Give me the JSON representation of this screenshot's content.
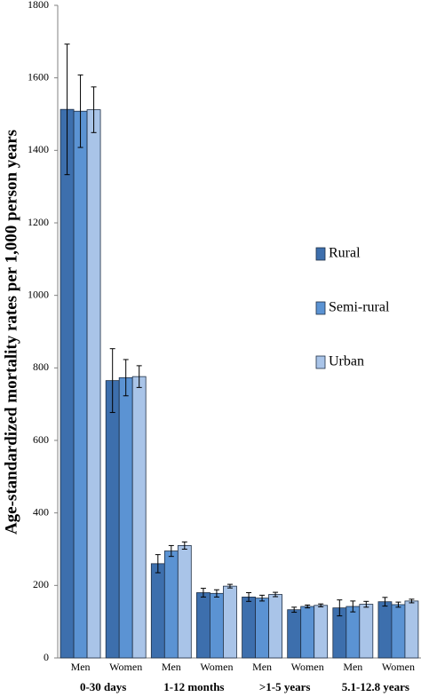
{
  "chart_data": {
    "type": "bar",
    "ylabel": "Age-standardized mortality rates  per 1,000 person years",
    "categories": [
      "Men",
      "Women",
      "Men",
      "Women",
      "Men",
      "Women",
      "Men",
      "Women"
    ],
    "groups": [
      "0-30 days",
      "1-12 months",
      ">1-5 years",
      "5.1-12.8 years"
    ],
    "series": [
      {
        "name": "Rural",
        "color": "#3d6fad",
        "values": [
          1513,
          765,
          260,
          180,
          168,
          133,
          138,
          155
        ],
        "errors": [
          180,
          88,
          25,
          12,
          12,
          7,
          22,
          12
        ]
      },
      {
        "name": "Semi-rural",
        "color": "#5b93d3",
        "values": [
          1508,
          773,
          295,
          178,
          165,
          142,
          142,
          147
        ],
        "errors": [
          100,
          50,
          15,
          10,
          8,
          4,
          15,
          7
        ]
      },
      {
        "name": "Urban",
        "color": "#a9c4e8",
        "values": [
          1512,
          776,
          310,
          198,
          175,
          145,
          148,
          157
        ],
        "errors": [
          63,
          30,
          10,
          5,
          6,
          4,
          8,
          5
        ]
      }
    ],
    "ylim": [
      0,
      1800
    ],
    "yticks": [
      0,
      200,
      400,
      600,
      800,
      1000,
      1200,
      1400,
      1600,
      1800
    ],
    "grid": false,
    "legend": "right"
  }
}
